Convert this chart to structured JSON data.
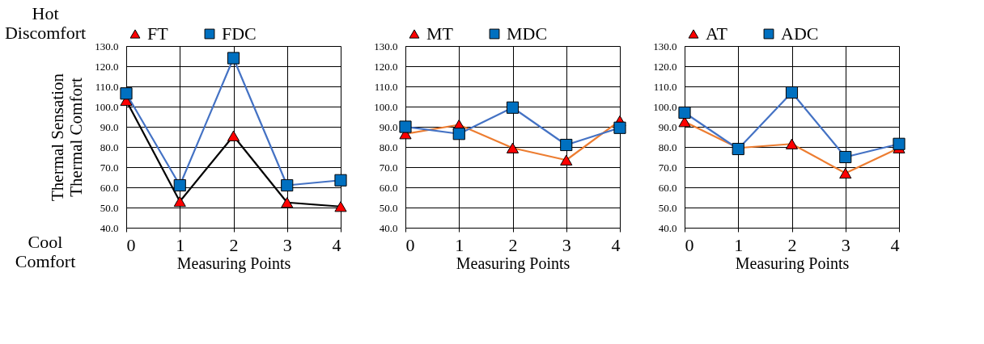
{
  "chart_data": [
    {
      "type": "line",
      "xlabel": "Measuring Points",
      "ylabel": "Thermal Sensation\nThermal Comfort",
      "annotations": [
        "Hot Discomfort",
        "Cool Comfort"
      ],
      "x": [
        0,
        1,
        2,
        3,
        4
      ],
      "xlim": [
        0,
        4
      ],
      "xticks": [
        0,
        1,
        2,
        3,
        4
      ],
      "ylim": [
        40,
        130
      ],
      "yticks": [
        {
          "value": 40,
          "label": "40.0"
        },
        {
          "value": 50,
          "label": "50.0"
        },
        {
          "value": 60,
          "label": "60.0"
        },
        {
          "value": 70,
          "label": "70.0"
        },
        {
          "value": 80,
          "label": "80.0"
        },
        {
          "value": 90,
          "label": "90.0"
        },
        {
          "value": 100,
          "label": "100.0"
        },
        {
          "value": 110,
          "label": "110.0"
        },
        {
          "value": 120,
          "label": "120.0"
        },
        {
          "value": 130,
          "label": "130.0"
        }
      ],
      "grid": true,
      "legend": "top",
      "line_style": "solid",
      "series": [
        {
          "name": "FT",
          "color": "#000000",
          "marker": "triangle",
          "colors": [
            "#ff0000",
            "#ff0000",
            "#ff0000",
            "#ff0000",
            "#ff0000"
          ],
          "values": [
            103,
            53,
            85.5,
            52.5,
            50.5
          ]
        },
        {
          "name": "FDC",
          "color": "#4472c4",
          "marker": "square",
          "colors": [
            "#0070c0",
            "#0070c0",
            "#0070c0",
            "#0070c0",
            "#0070c0"
          ],
          "values": [
            106.5,
            61,
            124,
            61,
            63.5
          ]
        }
      ]
    },
    {
      "type": "line",
      "xlabel": "Measuring Points",
      "x": [
        0,
        1,
        2,
        3,
        4
      ],
      "xlim": [
        0,
        4
      ],
      "xticks": [
        0,
        1,
        2,
        3,
        4
      ],
      "ylim": [
        40,
        130
      ],
      "yticks": [
        {
          "value": 40,
          "label": "40.0"
        },
        {
          "value": 50,
          "label": "50.0"
        },
        {
          "value": 60,
          "label": "60.0"
        },
        {
          "value": 70,
          "label": "70.0"
        },
        {
          "value": 80,
          "label": "80.0"
        },
        {
          "value": 90,
          "label": "90.0"
        },
        {
          "value": 100,
          "label": "100.0"
        },
        {
          "value": 110,
          "label": "110.0"
        },
        {
          "value": 120,
          "label": "120.0"
        },
        {
          "value": 130,
          "label": "130.0"
        }
      ],
      "grid": true,
      "legend": "top",
      "line_style": "solid",
      "series": [
        {
          "name": "MT",
          "color": "#ed7d31",
          "marker": "triangle",
          "colors": [
            "#ff0000",
            "#ff0000",
            "#ff0000",
            "#ff0000",
            "#ff0000"
          ],
          "values": [
            86.5,
            91,
            79.5,
            73.5,
            93
          ]
        },
        {
          "name": "MDC",
          "color": "#4472c4",
          "marker": "square",
          "colors": [
            "#0070c0",
            "#0070c0",
            "#0070c0",
            "#0070c0",
            "#0070c0"
          ],
          "values": [
            90,
            86.5,
            99.5,
            81,
            89.5
          ]
        }
      ]
    },
    {
      "type": "line",
      "xlabel": "Measuring Points",
      "x": [
        0,
        1,
        2,
        3,
        4
      ],
      "xlim": [
        0,
        4
      ],
      "xticks": [
        0,
        1,
        2,
        3,
        4
      ],
      "ylim": [
        40,
        130
      ],
      "yticks": [
        {
          "value": 40,
          "label": "40.0"
        },
        {
          "value": 50,
          "label": "50.0"
        },
        {
          "value": 60,
          "label": "60.0"
        },
        {
          "value": 70,
          "label": "70.0"
        },
        {
          "value": 80,
          "label": "80.0"
        },
        {
          "value": 90,
          "label": "90.0"
        },
        {
          "value": 100,
          "label": "100.0"
        },
        {
          "value": 110,
          "label": "110.0"
        },
        {
          "value": 120,
          "label": "120.0"
        },
        {
          "value": 130,
          "label": "130.0"
        }
      ],
      "grid": true,
      "legend": "top",
      "line_style": "solid",
      "series": [
        {
          "name": "AT",
          "color": "#ed7d31",
          "marker": "triangle",
          "colors": [
            "#ff0000",
            "#ff0000",
            "#ff0000",
            "#ff0000",
            "#ff0000"
          ],
          "values": [
            92.5,
            79.5,
            81.5,
            67,
            79.5
          ]
        },
        {
          "name": "ADC",
          "color": "#4472c4",
          "marker": "square",
          "colors": [
            "#0070c0",
            "#0070c0",
            "#0070c0",
            "#0070c0",
            "#0070c0"
          ],
          "values": [
            97,
            79,
            107,
            75,
            81.5
          ]
        }
      ]
    }
  ]
}
